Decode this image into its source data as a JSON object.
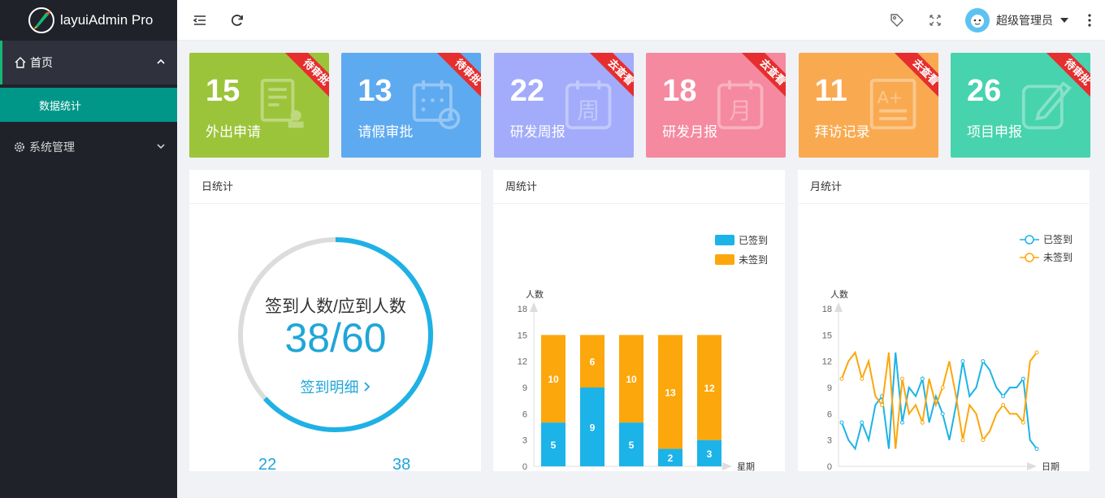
{
  "app": {
    "title": "layuiAdmin Pro"
  },
  "sidebar": {
    "items": [
      {
        "label": "首页",
        "sub": [
          {
            "label": "数据统计"
          }
        ]
      },
      {
        "label": "系统管理"
      }
    ]
  },
  "header": {
    "user_name": "超级管理员"
  },
  "cards": [
    {
      "value": "15",
      "label": "外出申请",
      "ribbon": "待审批",
      "color": "#9cc43a",
      "icon": "document-stamp-icon"
    },
    {
      "value": "13",
      "label": "请假审批",
      "ribbon": "待审批",
      "color": "#5eaaf0",
      "icon": "calendar-clock-icon"
    },
    {
      "value": "22",
      "label": "研发周报",
      "ribbon": "去查看",
      "color": "#a2acfa",
      "icon": "week-calendar-icon"
    },
    {
      "value": "18",
      "label": "研发月报",
      "ribbon": "去查看",
      "color": "#f5899f",
      "icon": "month-calendar-icon"
    },
    {
      "value": "11",
      "label": "拜访记录",
      "ribbon": "去查看",
      "color": "#f9aa50",
      "icon": "grade-doc-icon"
    },
    {
      "value": "26",
      "label": "项目申报",
      "ribbon": "待审批",
      "color": "#47d3ad",
      "icon": "edit-icon"
    }
  ],
  "daily": {
    "title": "日统计",
    "caption": "签到人数/应到人数",
    "ratio": "38/60",
    "progress": 0.633,
    "link": "签到明细",
    "bottom_left": "22",
    "bottom_right": "38"
  },
  "weekly": {
    "title": "周统计",
    "chart_data": {
      "type": "bar",
      "stacked": true,
      "ylabel": "人数",
      "xlabel": "星期",
      "ylim": [
        0,
        18
      ],
      "yticks": [
        "0",
        "3",
        "6",
        "9",
        "12",
        "15",
        "18"
      ],
      "series": [
        {
          "name": "已签到",
          "color": "#1cb3e8",
          "values": [
            5,
            9,
            5,
            2,
            3
          ]
        },
        {
          "name": "未签到",
          "color": "#fca70b",
          "values": [
            10,
            6,
            10,
            13,
            12
          ]
        }
      ],
      "legend": "top-right"
    }
  },
  "monthly": {
    "title": "月统计",
    "chart_data": {
      "type": "line",
      "ylabel": "人数",
      "xlabel": "日期",
      "ylim": [
        0,
        18
      ],
      "yticks": [
        "0",
        "3",
        "6",
        "9",
        "12",
        "15",
        "18"
      ],
      "series": [
        {
          "name": "已签到",
          "color": "#1cb3e8",
          "values": [
            5,
            3,
            2,
            5,
            3,
            7,
            8,
            2,
            13,
            5,
            9,
            8,
            10,
            5,
            8,
            6,
            3,
            7,
            12,
            8,
            9,
            12,
            11,
            9,
            8,
            9,
            9,
            10,
            3,
            2
          ]
        },
        {
          "name": "未签到",
          "color": "#fca70b",
          "values": [
            10,
            12,
            13,
            10,
            12,
            8,
            7,
            13,
            2,
            10,
            6,
            7,
            5,
            10,
            7,
            9,
            12,
            8,
            3,
            7,
            6,
            3,
            4,
            6,
            7,
            6,
            6,
            5,
            12,
            13
          ]
        }
      ],
      "legend": "top-right"
    }
  }
}
